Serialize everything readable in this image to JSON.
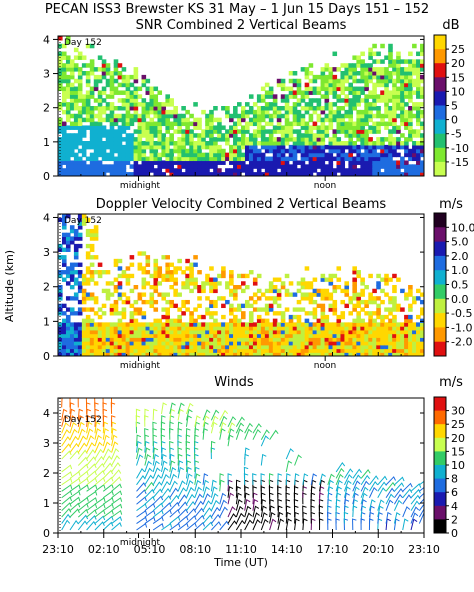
{
  "page_title": "PECAN ISS3 Brewster KS  31 May –   1 Jun 15 Days 151 – 152",
  "day_marker": "Day 152",
  "ylabel": "Altitude (km)",
  "xlabel": "Time (UT)",
  "panel_tick_labels": {
    "midnight": "midnight",
    "noon": "noon"
  },
  "bottom_x_ticks": [
    "23:10",
    "02:10",
    "05:10",
    "08:10",
    "11:10",
    "14:10",
    "17:10",
    "20:10",
    "23:10"
  ],
  "chart_data": [
    {
      "type": "heatmap",
      "title": "SNR Combined 2 Vertical Beams",
      "unit": "dB",
      "y_ticks": [
        0,
        1,
        2,
        3,
        4
      ],
      "ylim": [
        0,
        4.1
      ],
      "x_markers": [
        "midnight",
        "noon"
      ],
      "colorbar": {
        "labels": [
          "25",
          "20",
          "15",
          "10",
          "5",
          "0",
          "-5",
          "-10",
          "-15"
        ],
        "colors": [
          "#ffd700",
          "#ff9900",
          "#e01010",
          "#6a0f6a",
          "#1a1ab0",
          "#1e6ce0",
          "#10b0d0",
          "#22c070",
          "#7ee830",
          "#c8ff50"
        ]
      }
    },
    {
      "type": "heatmap",
      "title": "Doppler Velocity Combined 2 Vertical Beams",
      "unit": "m/s",
      "y_ticks": [
        0,
        1,
        2,
        3,
        4
      ],
      "ylim": [
        0,
        4.1
      ],
      "x_markers": [
        "midnight",
        "noon"
      ],
      "colorbar": {
        "labels": [
          "10.0",
          "5.0",
          "2.0",
          "1.0",
          "0.5",
          "0.0",
          "-0.5",
          "-1.0",
          "-2.0"
        ],
        "colors": [
          "#200020",
          "#6a0f6a",
          "#1a1ab0",
          "#1e6ce0",
          "#10b0d0",
          "#33cc66",
          "#bff040",
          "#ffd700",
          "#ff9900",
          "#e01010"
        ]
      }
    },
    {
      "type": "scatter",
      "title": "Winds",
      "unit": "m/s",
      "y_ticks": [
        0,
        1,
        2,
        3,
        4
      ],
      "ylim": [
        0,
        4.5
      ],
      "x_markers": [
        "midnight"
      ],
      "colorbar": {
        "labels": [
          "30",
          "25",
          "20",
          "15",
          "10",
          "8",
          "6",
          "4",
          "2",
          "0"
        ],
        "colors": [
          "#e01010",
          "#ff6a00",
          "#ffd700",
          "#c8ff50",
          "#33cc66",
          "#10b0d0",
          "#1e6ce0",
          "#1a1ab0",
          "#6a0f6a",
          "#000000"
        ]
      }
    }
  ]
}
